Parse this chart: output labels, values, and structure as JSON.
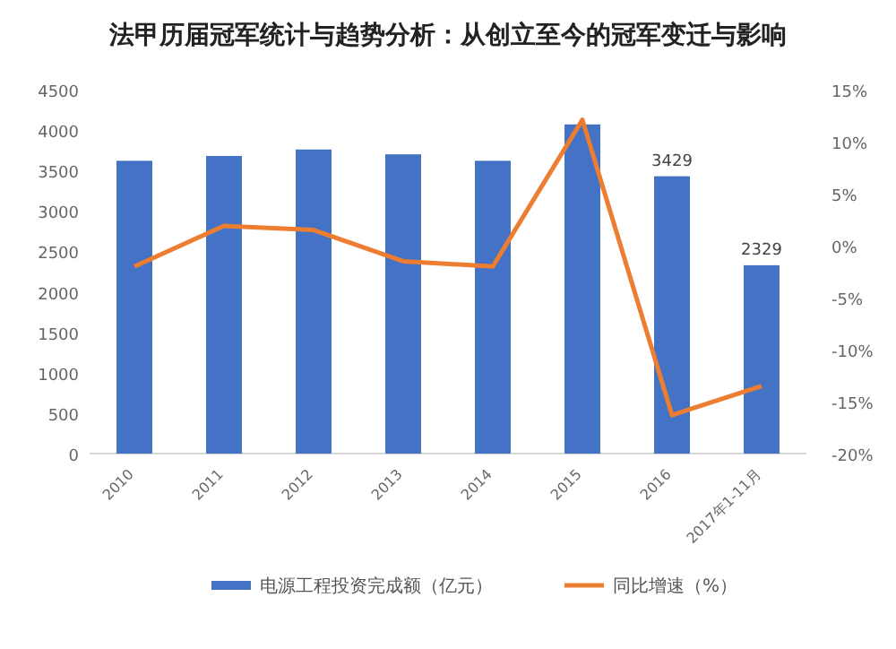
{
  "chart_data": {
    "type": "bar",
    "title": "法甲历届冠军统计与趋势分析：从创立至今的冠军变迁与影响",
    "categories": [
      "2010",
      "2011",
      "2012",
      "2013",
      "2014",
      "2015",
      "2016",
      "2017年1-11月"
    ],
    "series": [
      {
        "name": "电源工程投资完成额（亿元）",
        "color": "#4472c4",
        "values": [
          3620,
          3680,
          3760,
          3700,
          3620,
          4070,
          3429,
          2329
        ],
        "value_labels": [
          null,
          null,
          null,
          null,
          null,
          null,
          "3429",
          "2329"
        ]
      },
      {
        "name": "同比增速（%）",
        "type": "line",
        "axis": "y2",
        "color": "#ed7d31",
        "values": [
          -2,
          1.9,
          1.5,
          -1.5,
          -2,
          12.1,
          -16.3,
          -13.5
        ]
      }
    ],
    "ylim": [
      0,
      4500
    ],
    "yticks": [
      0,
      500,
      1000,
      1500,
      2000,
      2500,
      3000,
      3500,
      4000,
      4500
    ],
    "y2lim": [
      -20,
      15
    ],
    "y2ticks": [
      {
        "value": -20,
        "label": "-20%"
      },
      {
        "value": -15,
        "label": "-15%"
      },
      {
        "value": -10,
        "label": "-10%"
      },
      {
        "value": -5,
        "label": "-5%"
      },
      {
        "value": 0,
        "label": "0%"
      },
      {
        "value": 5,
        "label": "5%"
      },
      {
        "value": 10,
        "label": "10%"
      },
      {
        "value": 15,
        "label": "15%"
      }
    ],
    "legend": "bottom",
    "grid": false
  }
}
